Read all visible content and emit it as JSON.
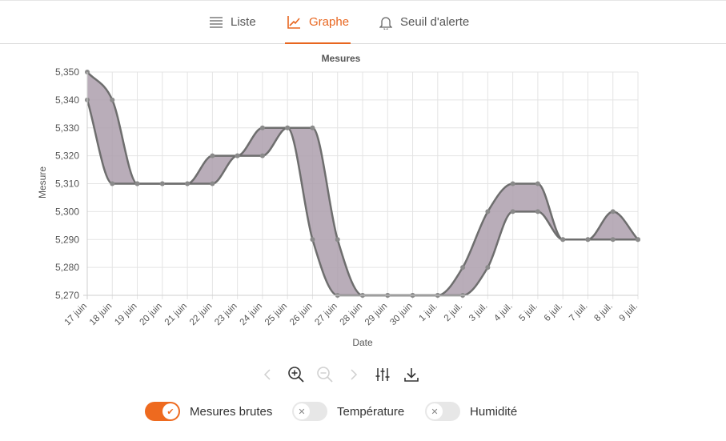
{
  "tabs": [
    {
      "label": "Liste",
      "icon": "list-icon",
      "active": false
    },
    {
      "label": "Graphe",
      "icon": "line-chart-icon",
      "active": true
    },
    {
      "label": "Seuil d'alerte",
      "icon": "bell-icon",
      "active": false
    }
  ],
  "accent_color": "#e8661f",
  "chart_data": {
    "type": "area",
    "title": "Mesures",
    "xlabel": "Date",
    "ylabel": "Mesure",
    "categories": [
      "17 juin",
      "18 juin",
      "19 juin",
      "20 juin",
      "21 juin",
      "22 juin",
      "23 juin",
      "24 juin",
      "25 juin",
      "26 juin",
      "27 juin",
      "28 juin",
      "29 juin",
      "30 juin",
      "1 juil.",
      "2 juil.",
      "3 juil.",
      "4 juil.",
      "5 juil.",
      "6 juil.",
      "7 juil.",
      "8 juil.",
      "9 juil."
    ],
    "yticks": [
      "5,270",
      "5,280",
      "5,290",
      "5,300",
      "5,310",
      "5,320",
      "5,330",
      "5,340",
      "5,350"
    ],
    "ylim": [
      5.27,
      5.35
    ],
    "grid": true,
    "series": [
      {
        "values": [
          5.35,
          5.34,
          5.31,
          5.31,
          5.31,
          5.32,
          5.32,
          5.33,
          5.33,
          5.29,
          5.27,
          5.27,
          5.27,
          5.27,
          5.27,
          5.27,
          5.28,
          5.3,
          5.3,
          5.29,
          5.29,
          5.29,
          5.29
        ]
      },
      {
        "values": [
          5.34,
          5.31,
          5.31,
          5.31,
          5.31,
          5.31,
          5.32,
          5.32,
          5.33,
          5.33,
          5.29,
          5.27,
          5.27,
          5.27,
          5.27,
          5.28,
          5.3,
          5.31,
          5.31,
          5.29,
          5.29,
          5.3,
          5.29
        ]
      }
    ],
    "fill_color": "#ad9fad",
    "line_color": "#6e6e6e"
  },
  "toolbar": [
    {
      "name": "previous-icon",
      "enabled": false
    },
    {
      "name": "zoom-in-icon",
      "enabled": true
    },
    {
      "name": "zoom-out-icon",
      "enabled": false
    },
    {
      "name": "next-icon",
      "enabled": false
    },
    {
      "name": "sliders-icon",
      "enabled": true
    },
    {
      "name": "download-icon",
      "enabled": true
    }
  ],
  "toggles": [
    {
      "label": "Mesures brutes",
      "on": true
    },
    {
      "label": "Température",
      "on": false
    },
    {
      "label": "Humidité",
      "on": false
    }
  ]
}
